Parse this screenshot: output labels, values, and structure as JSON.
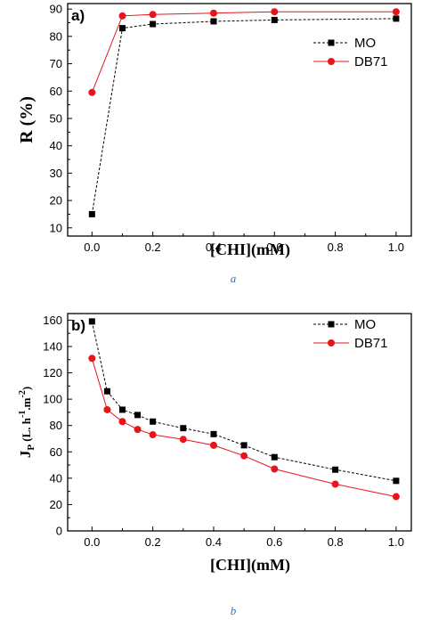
{
  "chart_data": [
    {
      "type": "line",
      "panel_label": "a)",
      "caption": "a",
      "xlabel": "[CHI](mM)",
      "ylabel": "R (%)",
      "xlim": [
        -0.08,
        1.05
      ],
      "ylim": [
        7,
        92
      ],
      "xticks": [
        0.0,
        0.2,
        0.4,
        0.6,
        0.8,
        1.0
      ],
      "xtick_labels": [
        "0.0",
        "0.2",
        "0.4",
        "0.6",
        "0.8",
        "1.0"
      ],
      "yticks": [
        10,
        20,
        30,
        40,
        50,
        60,
        70,
        80,
        90
      ],
      "ytick_labels": [
        "10",
        "20",
        "30",
        "40",
        "50",
        "60",
        "70",
        "80",
        "90"
      ],
      "grid": false,
      "legend_position": "right",
      "series": [
        {
          "name": "MO",
          "color": "#000000",
          "marker": "square",
          "x": [
            0.0,
            0.1,
            0.2,
            0.4,
            0.6,
            1.0
          ],
          "y": [
            15,
            83,
            84.5,
            85.5,
            86,
            86.5
          ]
        },
        {
          "name": "DB71",
          "color": "#e8141c",
          "marker": "circle",
          "x": [
            0.0,
            0.1,
            0.2,
            0.4,
            0.6,
            1.0
          ],
          "y": [
            59.5,
            87.5,
            88,
            88.5,
            89,
            89
          ]
        }
      ]
    },
    {
      "type": "line",
      "panel_label": "b)",
      "caption": "b",
      "xlabel": "[CHI](mM)",
      "ylabel": "Jp (L. h-1.m-2)",
      "ylabel_parts": {
        "main": "J",
        "sub": "P",
        "open": " (L. h",
        "sup1": "-1",
        "mid": ".m",
        "sup2": "-2",
        "close": ")"
      },
      "xlim": [
        -0.08,
        1.05
      ],
      "ylim": [
        0,
        165
      ],
      "xticks": [
        0.0,
        0.2,
        0.4,
        0.6,
        0.8,
        1.0
      ],
      "xtick_labels": [
        "0.0",
        "0.2",
        "0.4",
        "0.6",
        "0.8",
        "1.0"
      ],
      "yticks": [
        0,
        20,
        40,
        60,
        80,
        100,
        120,
        140,
        160
      ],
      "ytick_labels": [
        "0",
        "20",
        "40",
        "60",
        "80",
        "100",
        "120",
        "140",
        "160"
      ],
      "grid": false,
      "legend_position": "top-right",
      "series": [
        {
          "name": "MO",
          "color": "#000000",
          "marker": "square",
          "x": [
            0.0,
            0.05,
            0.1,
            0.15,
            0.2,
            0.3,
            0.4,
            0.5,
            0.6,
            0.8,
            1.0
          ],
          "y": [
            159,
            106,
            92,
            88,
            83,
            78,
            73.5,
            65,
            56,
            46.5,
            38
          ]
        },
        {
          "name": "DB71",
          "color": "#e8141c",
          "marker": "circle",
          "x": [
            0.0,
            0.05,
            0.1,
            0.15,
            0.2,
            0.3,
            0.4,
            0.5,
            0.6,
            0.8,
            1.0
          ],
          "y": [
            131,
            92,
            83,
            77,
            73,
            69.5,
            65,
            57,
            47,
            35.5,
            26
          ]
        }
      ]
    }
  ]
}
